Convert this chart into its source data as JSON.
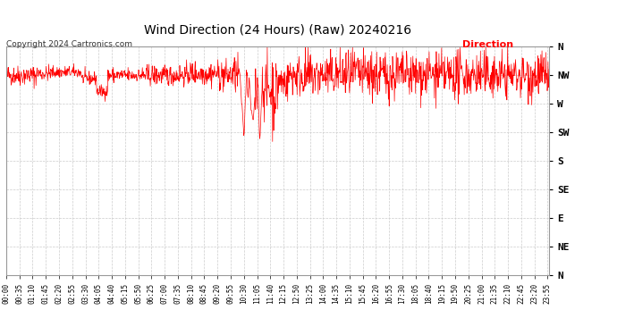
{
  "title": "Wind Direction (24 Hours) (Raw) 20240216",
  "copyright": "Copyright 2024 Cartronics.com",
  "legend_label": "Direction",
  "line_color": "#ff0000",
  "background_color": "#ffffff",
  "grid_color": "#cccccc",
  "ytick_labels": [
    "N",
    "NW",
    "W",
    "SW",
    "S",
    "SE",
    "E",
    "NE",
    "N"
  ],
  "ytick_values": [
    360,
    315,
    270,
    225,
    180,
    135,
    90,
    45,
    0
  ],
  "ylim": [
    0,
    360
  ],
  "x_tick_interval_minutes": 35,
  "total_minutes": 1440,
  "figsize": [
    6.9,
    3.75
  ],
  "dpi": 100,
  "seed": 42,
  "base_direction_deg": 315
}
